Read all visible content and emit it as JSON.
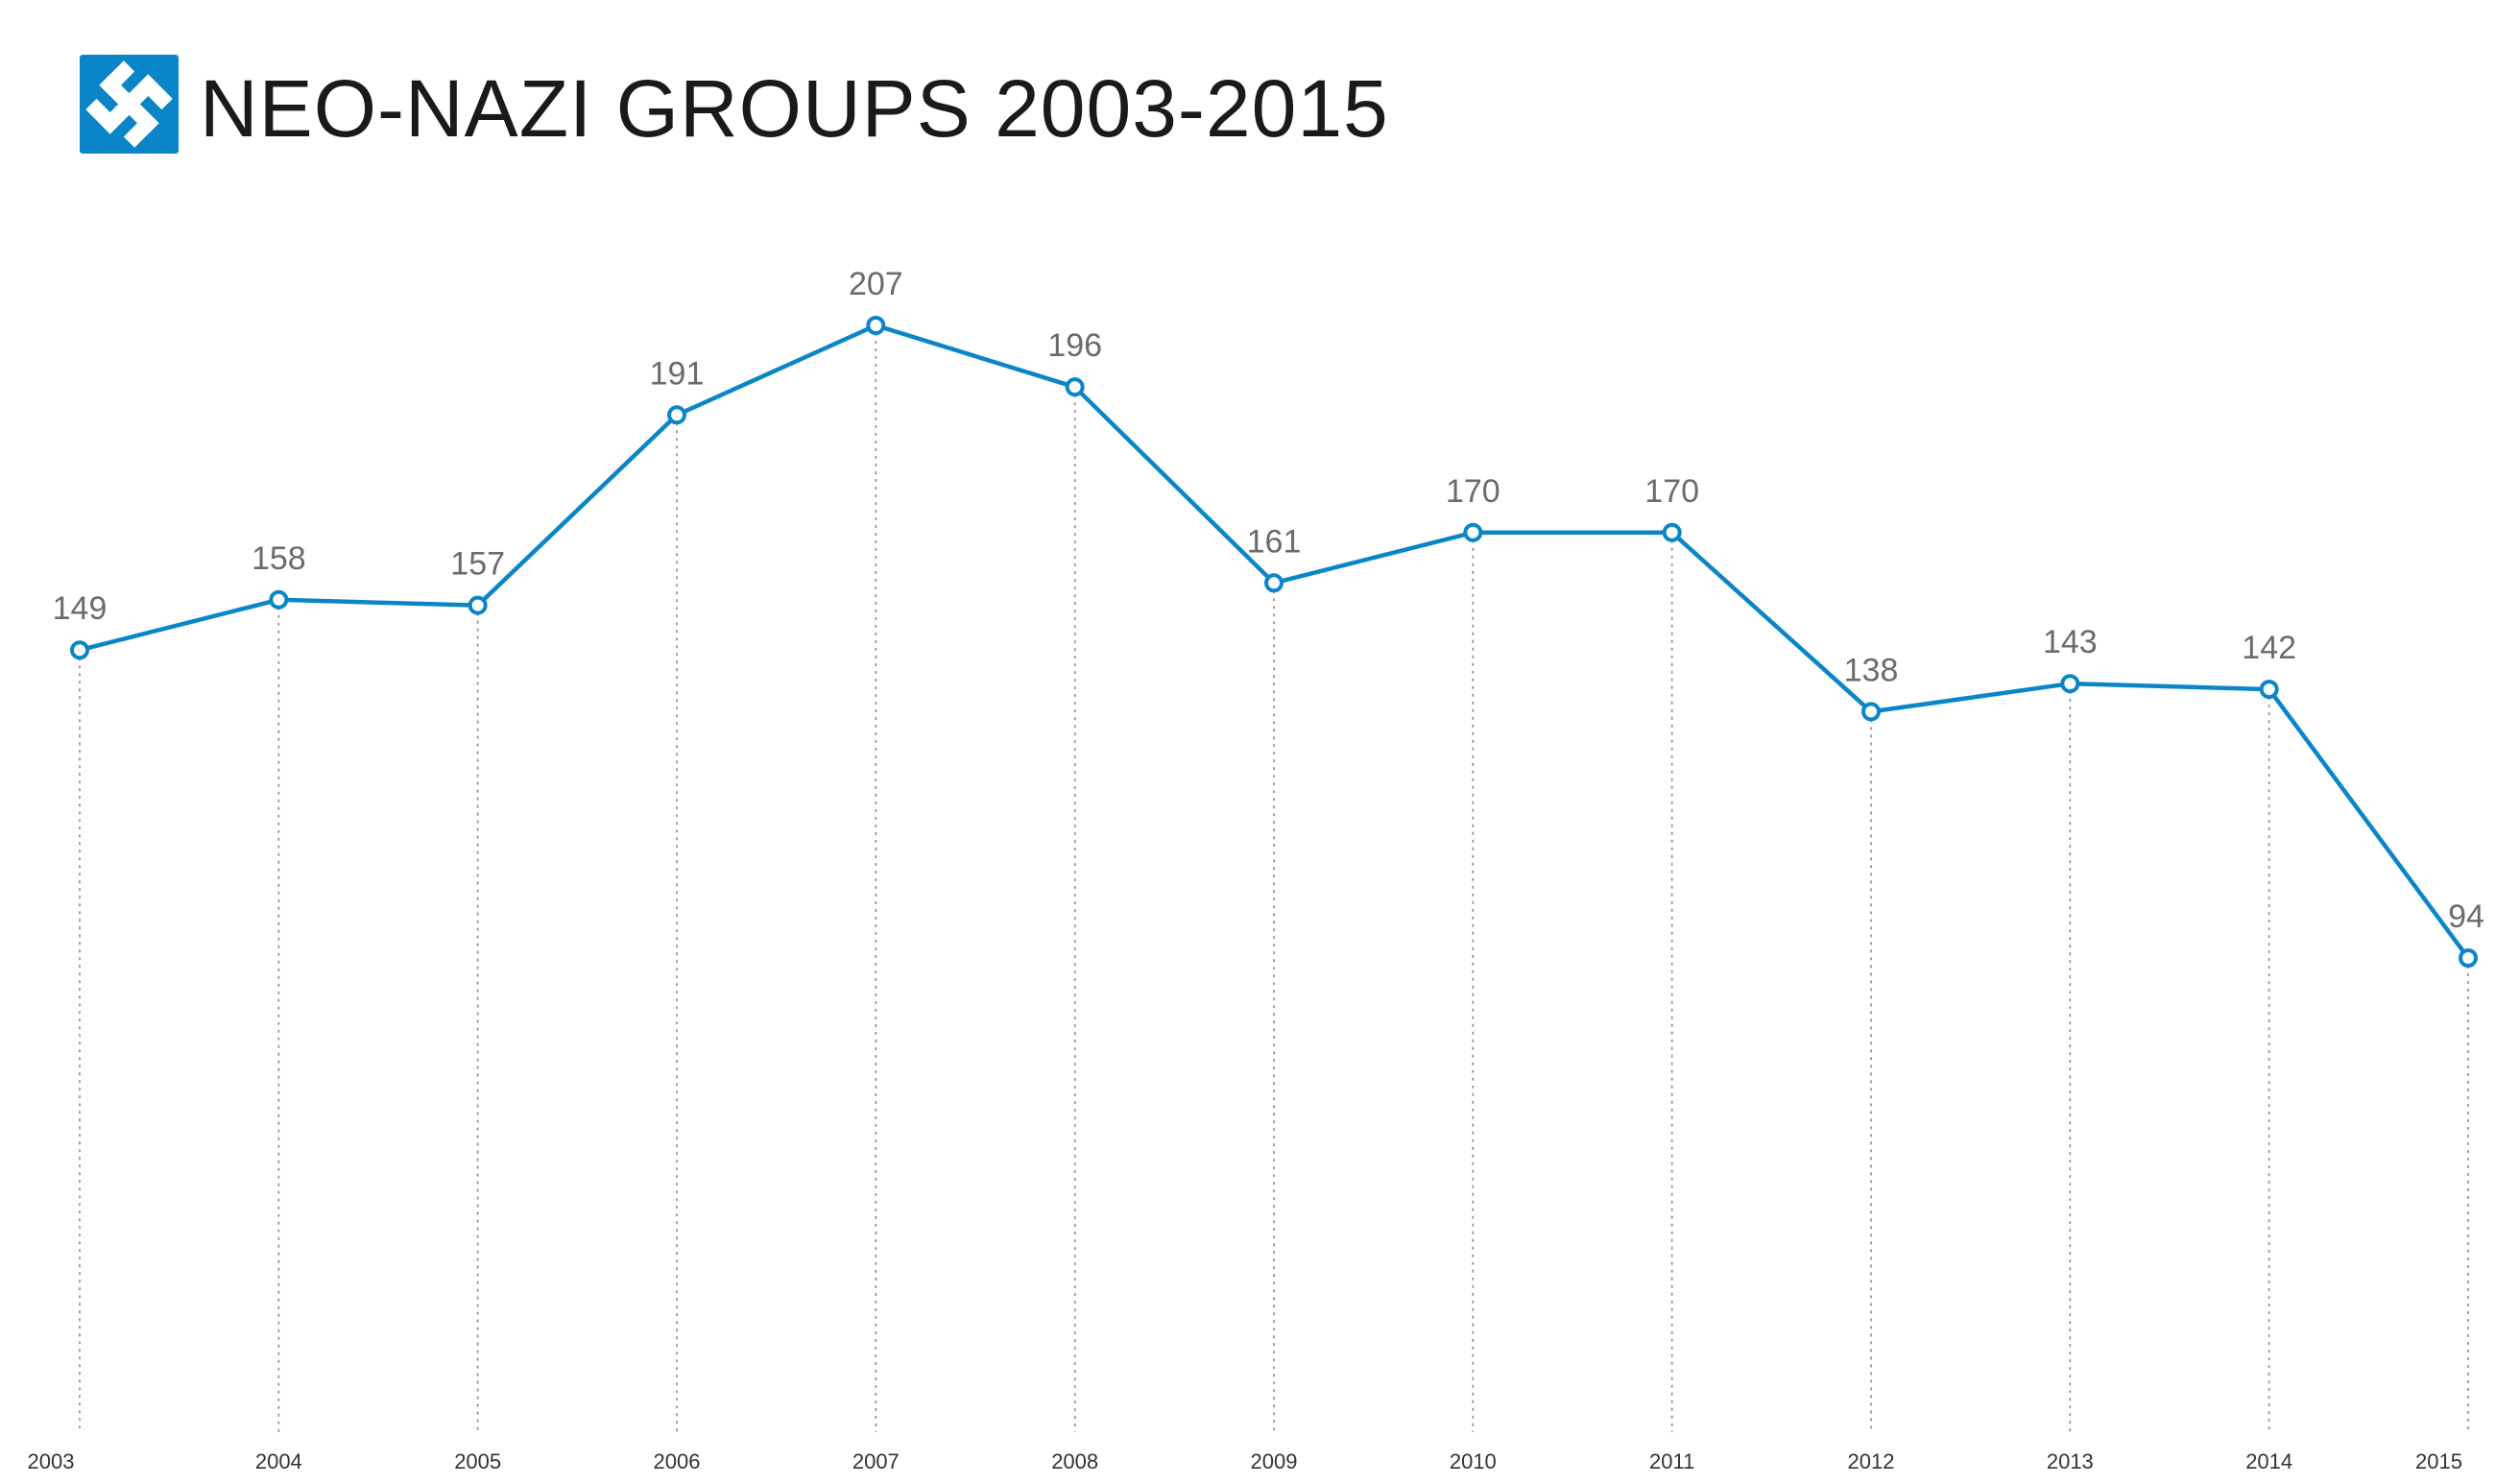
{
  "title": "NEO-NAZI GROUPS 2003-2015",
  "logo": {
    "icon": "swastika-icon",
    "background": "#0a86c8",
    "foreground": "#ffffff"
  },
  "colors": {
    "line": "#0a86c8",
    "marker_fill": "#ffffff",
    "value_label": "#6b6b6b",
    "guide": "#8a8a8a"
  },
  "chart_data": {
    "type": "line",
    "title": "NEO-NAZI GROUPS 2003-2015",
    "xlabel": "",
    "ylabel": "",
    "categories": [
      "2003",
      "2004",
      "2005",
      "2006",
      "2007",
      "2008",
      "2009",
      "2010",
      "2011",
      "2012",
      "2013",
      "2014",
      "2015"
    ],
    "series": [
      {
        "values": [
          149,
          158,
          157,
          191,
          207,
          196,
          161,
          170,
          170,
          138,
          143,
          142,
          94
        ]
      }
    ],
    "data_labels": true,
    "grid": false,
    "legend": "none"
  }
}
